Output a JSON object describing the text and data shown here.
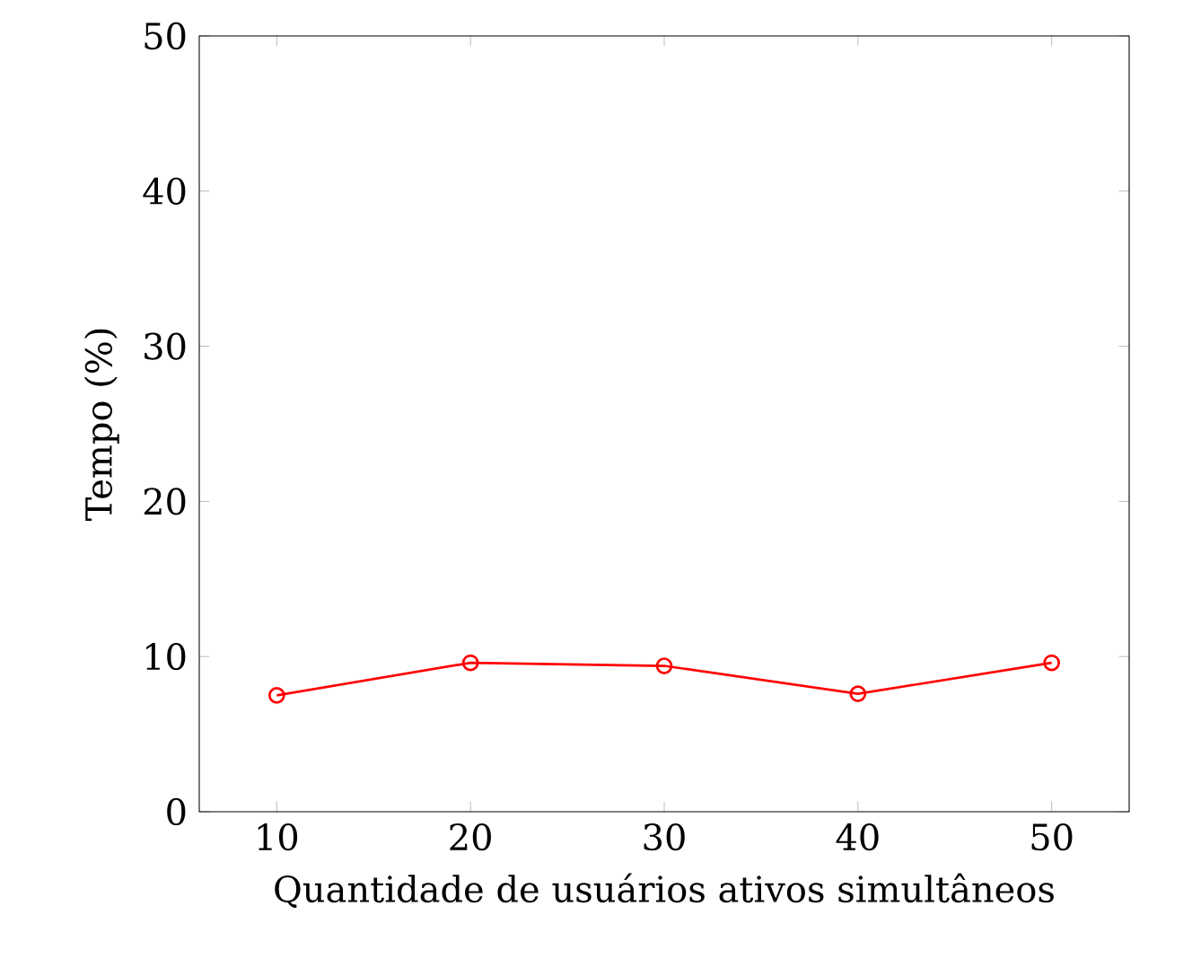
{
  "chart_data": {
    "type": "line",
    "xlabel": "Quantidade de usuários ativos simultâneos",
    "ylabel": "Tempo (%)",
    "x": [
      10,
      20,
      30,
      40,
      50
    ],
    "series": [
      {
        "color": "#ff0000",
        "values": [
          7.5,
          9.6,
          9.4,
          7.6,
          9.6
        ]
      }
    ],
    "xlim": [
      6,
      54
    ],
    "ylim": [
      0,
      50
    ],
    "xticks": [
      10,
      20,
      30,
      40,
      50
    ],
    "yticks": [
      0,
      10,
      20,
      30,
      40,
      50
    ],
    "marker": "circle",
    "line_style": "solid",
    "grid": false
  }
}
